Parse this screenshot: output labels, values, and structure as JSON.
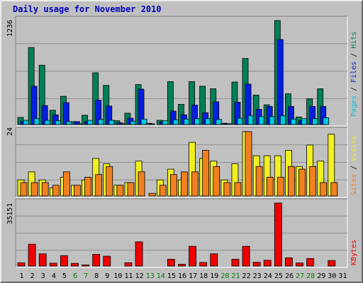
{
  "chart_data": {
    "type": "bar",
    "title": "Daily usage for November 2010",
    "categories": [
      "1",
      "2",
      "3",
      "4",
      "5",
      "6",
      "7",
      "8",
      "9",
      "10",
      "11",
      "12",
      "13",
      "14",
      "15",
      "16",
      "17",
      "18",
      "19",
      "20",
      "21",
      "22",
      "23",
      "24",
      "25",
      "26",
      "27",
      "28",
      "29",
      "30",
      "31"
    ],
    "weekend_days": [
      "6",
      "7",
      "13",
      "14",
      "20",
      "21",
      "27",
      "28"
    ],
    "panels": [
      {
        "name": "hits-files-pages",
        "ymax_label": "1236",
        "ymax": 1236,
        "legend": [
          "Pages",
          "Files",
          "Hits"
        ],
        "series": [
          {
            "name": "Hits",
            "color": "#00805a",
            "values": [
              85,
              915,
              705,
              170,
              335,
              35,
              110,
              615,
              465,
              45,
              135,
              475,
              15,
              50,
              510,
              240,
              510,
              455,
              425,
              15,
              505,
              785,
              350,
              235,
              1236,
              365,
              90,
              305,
              425,
              0,
              0
            ]
          },
          {
            "name": "Files",
            "color": "#0020e0",
            "values": [
              40,
              455,
              225,
              115,
              260,
              35,
              35,
              290,
              220,
              20,
              75,
              420,
              5,
              30,
              160,
              115,
              230,
              140,
              270,
              10,
              265,
              480,
              180,
              215,
              1010,
              215,
              45,
              215,
              215,
              0,
              0
            ]
          },
          {
            "name": "Pages",
            "color": "#00c8e0",
            "values": [
              50,
              70,
              50,
              45,
              35,
              10,
              50,
              60,
              50,
              10,
              40,
              65,
              0,
              45,
              55,
              65,
              70,
              70,
              60,
              10,
              75,
              105,
              95,
              95,
              105,
              65,
              70,
              70,
              80,
              0,
              0
            ]
          }
        ]
      },
      {
        "name": "visits-sites",
        "ymax_label": "24",
        "ymax": 24,
        "legend": [
          "Sites",
          "Visits"
        ],
        "series": [
          {
            "name": "Visits",
            "color": "#f0f020",
            "values": [
              6,
              9,
              6,
              3,
              7,
              4,
              6,
              14,
              12,
              4,
              5,
              13,
              0,
              6,
              10,
              6,
              20,
              14,
              13,
              6,
              12,
              24,
              15,
              15,
              15,
              17,
              11,
              19,
              13,
              23,
              0
            ]
          },
          {
            "name": "Sites",
            "color": "#f08020",
            "values": [
              5,
              5,
              5,
              4,
              9,
              4,
              7,
              8,
              11,
              4,
              5,
              9,
              1,
              4,
              8,
              9,
              9,
              17,
              11,
              5,
              5,
              24,
              11,
              7,
              7,
              11,
              10,
              11,
              5,
              5,
              0
            ]
          }
        ]
      },
      {
        "name": "kbytes",
        "ymax_label": "35151",
        "ymax": 35151,
        "legend": [
          "KBytes"
        ],
        "series": [
          {
            "name": "KBytes",
            "color": "#f00000",
            "values": [
              1800,
              12200,
              6800,
              1600,
              5800,
              1500,
              630,
              6500,
              5500,
              0,
              1800,
              13500,
              0,
              0,
              3800,
              1000,
              11000,
              2000,
              6800,
              0,
              3800,
              11000,
              2100,
              3200,
              35151,
              4600,
              1700,
              4200,
              0,
              3100,
              0
            ]
          }
        ]
      }
    ]
  }
}
